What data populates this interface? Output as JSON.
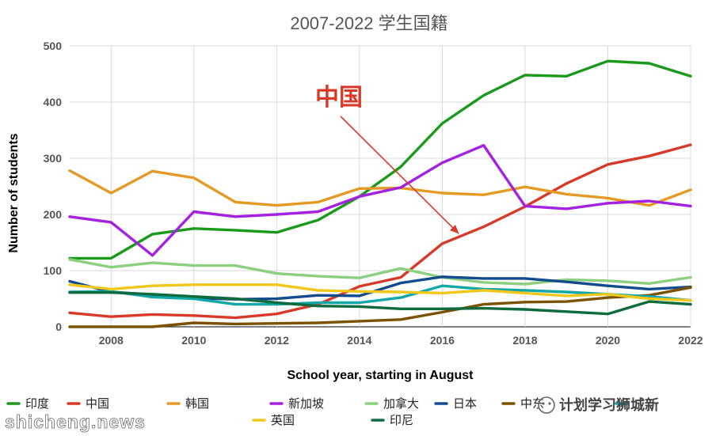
{
  "chart_data": {
    "type": "line",
    "title": "2007-2022 学生国籍",
    "xlabel": "School year, starting in August",
    "ylabel": "Number of students",
    "xlim": [
      2007,
      2022
    ],
    "ylim": [
      0,
      500
    ],
    "x_ticks": [
      2008,
      2010,
      2012,
      2014,
      2016,
      2018,
      2020,
      2022
    ],
    "y_ticks": [
      0,
      100,
      200,
      300,
      400,
      500
    ],
    "grid": true,
    "legend": "bottom",
    "x": [
      2007,
      2008,
      2009,
      2010,
      2011,
      2012,
      2013,
      2014,
      2015,
      2016,
      2017,
      2018,
      2019,
      2020,
      2021,
      2022
    ],
    "series": [
      {
        "name": "印度",
        "color": "#1a9a1a",
        "values": [
          122,
          122,
          165,
          175,
          172,
          168,
          190,
          232,
          285,
          362,
          412,
          448,
          446,
          473,
          469,
          446
        ]
      },
      {
        "name": "中国",
        "color": "#d83a2a",
        "values": [
          25,
          18,
          22,
          20,
          16,
          23,
          40,
          72,
          88,
          148,
          178,
          214,
          255,
          289,
          304,
          324
        ]
      },
      {
        "name": "韩国",
        "color": "#e59a25",
        "values": [
          278,
          238,
          277,
          265,
          222,
          216,
          222,
          246,
          247,
          238,
          235,
          249,
          236,
          229,
          216,
          244
        ]
      },
      {
        "name": "新加坡",
        "color": "#a521e0",
        "values": [
          196,
          186,
          127,
          205,
          196,
          200,
          205,
          232,
          248,
          292,
          323,
          215,
          210,
          220,
          224,
          215
        ]
      },
      {
        "name": "加拿大",
        "color": "#8ccf7f",
        "values": [
          120,
          106,
          114,
          109,
          109,
          95,
          90,
          87,
          104,
          88,
          79,
          76,
          84,
          82,
          77,
          88
        ]
      },
      {
        "name": "日本",
        "color": "#124c8c",
        "values": [
          81,
          62,
          57,
          51,
          49,
          50,
          56,
          55,
          78,
          89,
          86,
          86,
          80,
          73,
          67,
          71
        ]
      },
      {
        "name": "中东",
        "color": "#7b5200",
        "values": [
          0,
          0,
          0,
          7,
          5,
          6,
          7,
          10,
          13,
          26,
          40,
          44,
          45,
          52,
          56,
          70
        ]
      },
      {
        "name": "",
        "color": "#13a7a7",
        "values": [
          62,
          63,
          53,
          50,
          40,
          40,
          43,
          43,
          52,
          73,
          67,
          65,
          62,
          58,
          54,
          47
        ]
      },
      {
        "name": "英国",
        "color": "#efc81b",
        "values": [
          75,
          67,
          73,
          75,
          75,
          75,
          65,
          63,
          62,
          60,
          65,
          60,
          55,
          58,
          50,
          47
        ]
      },
      {
        "name": "印尼",
        "color": "#0d6b3e",
        "values": [
          61,
          61,
          58,
          54,
          50,
          43,
          37,
          36,
          32,
          32,
          33,
          31,
          27,
          23,
          45,
          40
        ]
      }
    ],
    "annotations": [
      {
        "text": "中国",
        "points_to": {
          "x": 2016.4,
          "y": 170
        }
      }
    ]
  },
  "legend_items": [
    {
      "label": "印度",
      "color": "#1a9a1a"
    },
    {
      "label": "中国",
      "color": "#d83a2a"
    },
    {
      "label": "韩国",
      "color": "#e59a25"
    },
    {
      "label": "新加坡",
      "color": "#a521e0"
    },
    {
      "label": "加拿大",
      "color": "#8ccf7f"
    },
    {
      "label": "日本",
      "color": "#124c8c"
    },
    {
      "label": "中东",
      "color": "#7b5200"
    },
    {
      "label": "",
      "color": "#13a7a7"
    },
    {
      "label": "英国",
      "color": "#efc81b"
    },
    {
      "label": "印尼",
      "color": "#0d6b3e"
    }
  ],
  "watermarks": [
    "shicheng.news",
    "计划学习狮城新"
  ]
}
